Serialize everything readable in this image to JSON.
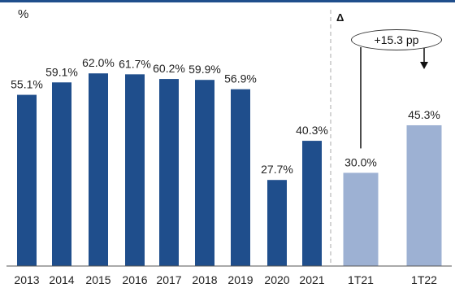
{
  "chart_data": {
    "type": "bar",
    "unit": "%",
    "categories": [
      "2013",
      "2014",
      "2015",
      "2016",
      "2017",
      "2018",
      "2019",
      "2020",
      "2021",
      "1T21",
      "1T22"
    ],
    "values": [
      55.1,
      59.1,
      62.0,
      61.7,
      60.2,
      59.9,
      56.9,
      27.7,
      40.3,
      30.0,
      45.3
    ],
    "value_labels": [
      "55.1%",
      "59.1%",
      "62.0%",
      "61.7%",
      "60.2%",
      "59.9%",
      "56.9%",
      "27.7%",
      "40.3%",
      "30.0%",
      "45.3%"
    ],
    "ylim": [
      0,
      72
    ],
    "grid": false,
    "colors": {
      "annual": "#1f4e8c",
      "quarter": "#9db1d3",
      "text": "#222222",
      "divider": "#aaaaaa"
    },
    "delta": {
      "symbol": "Δ",
      "label": "+15.3 pp",
      "from": "1T21",
      "to": "1T22"
    }
  }
}
